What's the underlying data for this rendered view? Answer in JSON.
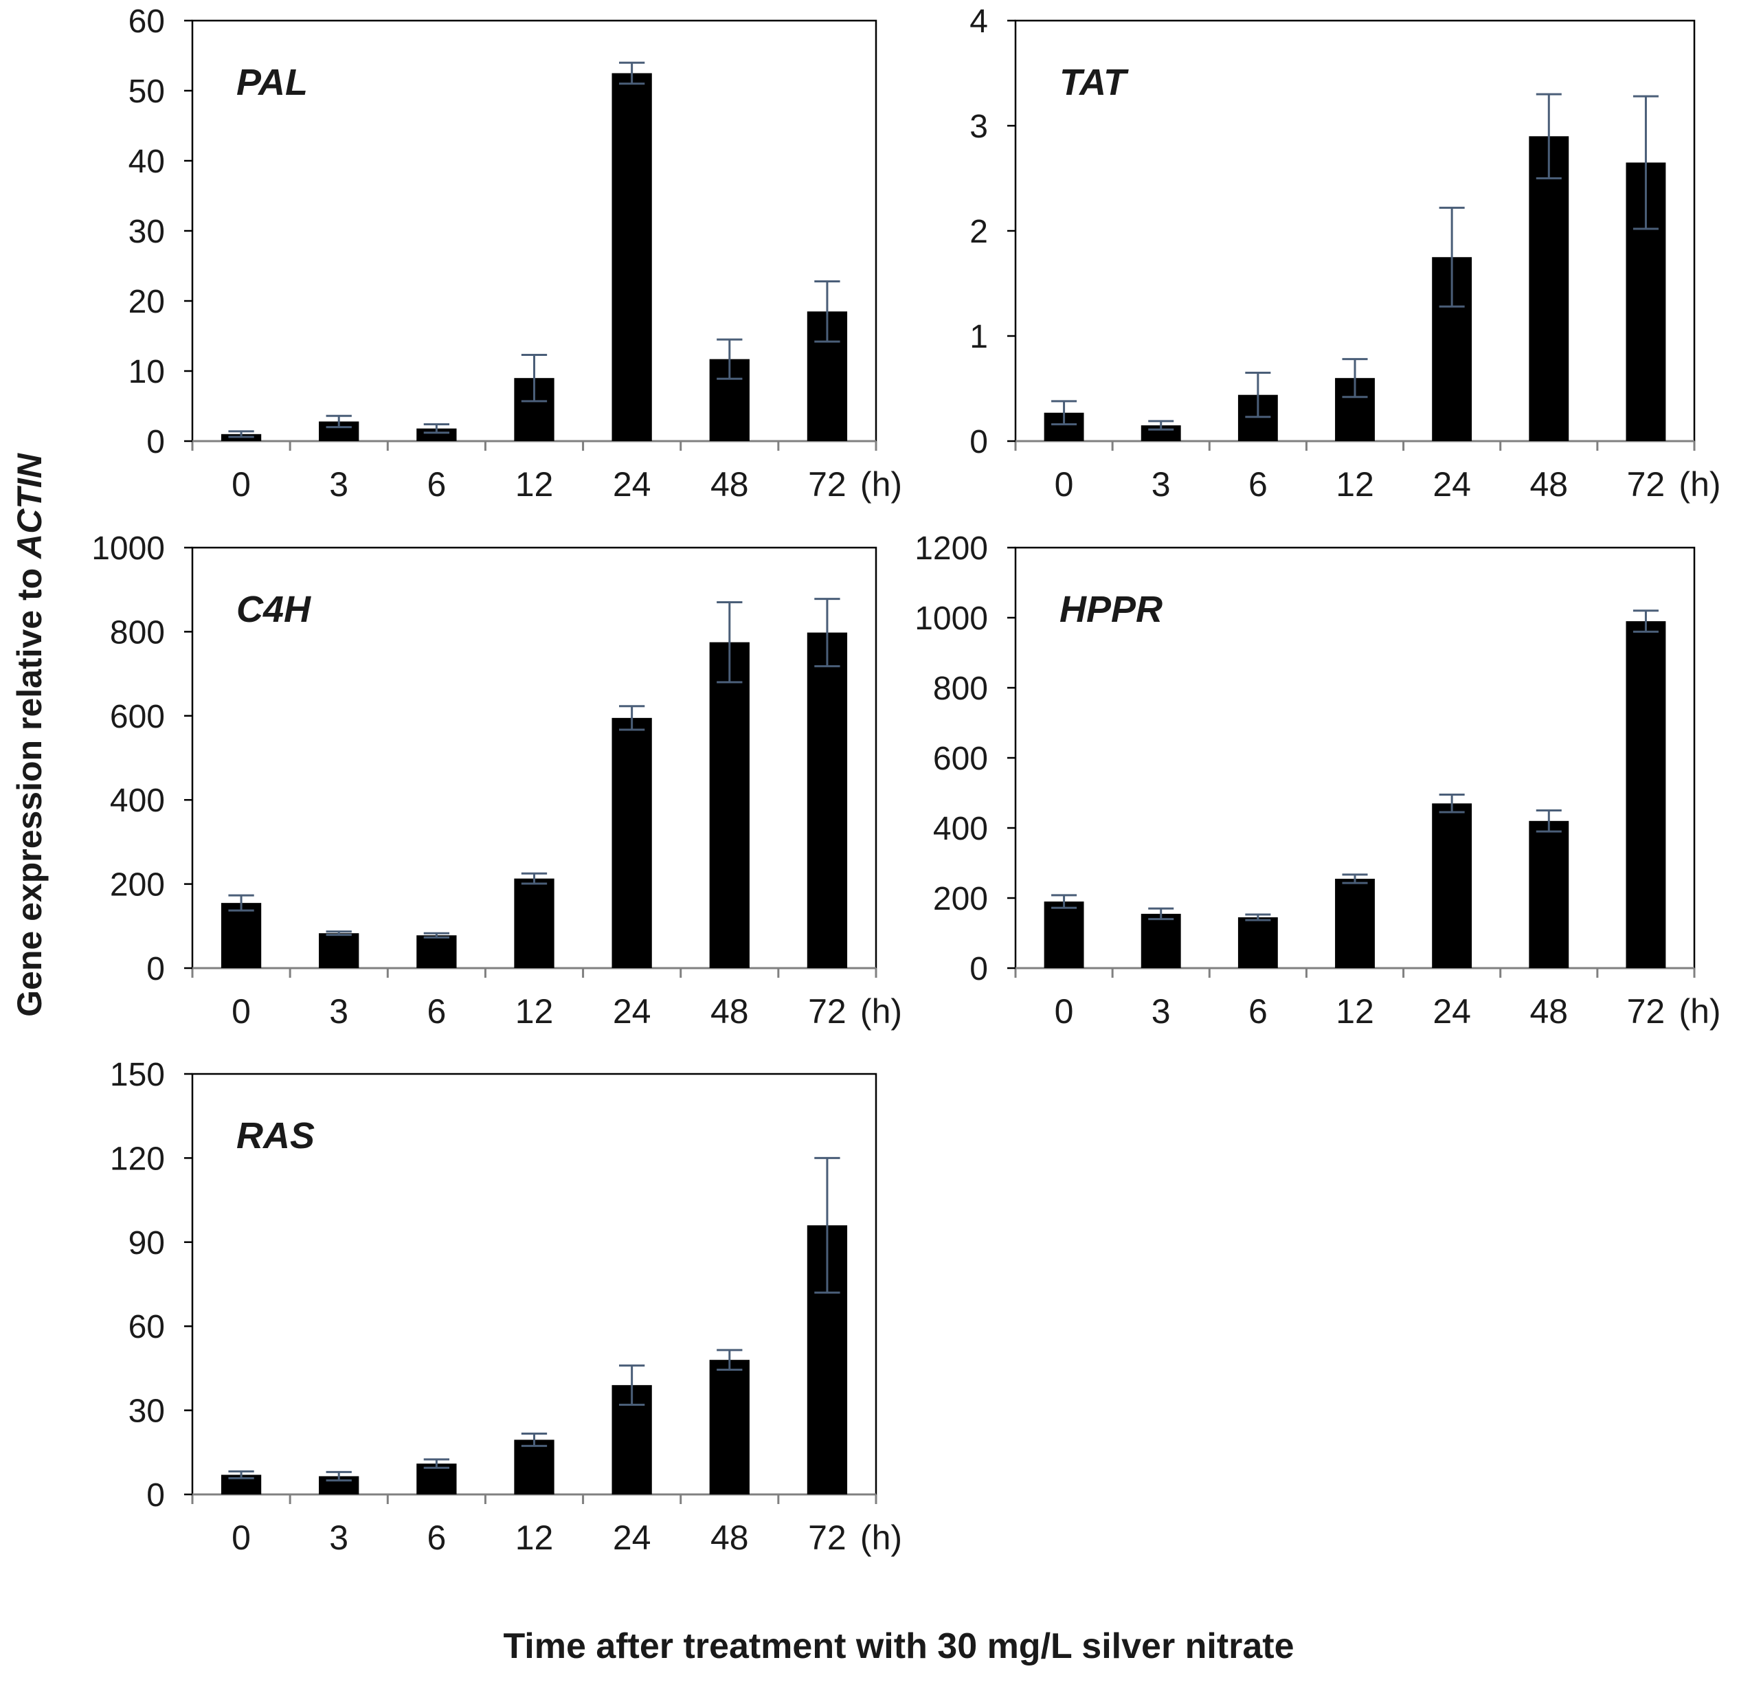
{
  "figure": {
    "ylabel_prefix": "Gene expression relative to",
    "ylabel_gene": "ACTIN",
    "xlabel": "Time after treatment with 30 mg/L silver nitrate",
    "unit_label": "(h)",
    "bar_color": "#000000",
    "error_color": "#4a5e78",
    "axis_color": "#808080"
  },
  "chart_data": [
    {
      "type": "bar",
      "title": "PAL",
      "categories": [
        "0",
        "3",
        "6",
        "12",
        "24",
        "48",
        "72"
      ],
      "values": [
        1,
        2.8,
        1.8,
        9,
        52.5,
        11.7,
        18.5
      ],
      "errors": [
        0.4,
        0.8,
        0.6,
        3.3,
        1.5,
        2.8,
        4.3
      ],
      "ylim": [
        0,
        60
      ],
      "yticks": [
        0,
        10,
        20,
        30,
        40,
        50,
        60
      ]
    },
    {
      "type": "bar",
      "title": "TAT",
      "categories": [
        "0",
        "3",
        "6",
        "12",
        "24",
        "48",
        "72"
      ],
      "values": [
        0.27,
        0.15,
        0.44,
        0.6,
        1.75,
        2.9,
        2.65
      ],
      "errors": [
        0.11,
        0.04,
        0.21,
        0.18,
        0.47,
        0.4,
        0.63
      ],
      "ylim": [
        0,
        4
      ],
      "yticks": [
        0,
        1,
        2,
        3,
        4
      ]
    },
    {
      "type": "bar",
      "title": "C4H",
      "categories": [
        "0",
        "3",
        "6",
        "12",
        "24",
        "48",
        "72"
      ],
      "values": [
        155,
        83,
        78,
        213,
        595,
        775,
        798
      ],
      "errors": [
        18,
        4,
        5,
        12,
        28,
        95,
        80
      ],
      "ylim": [
        0,
        1000
      ],
      "yticks": [
        0,
        200,
        400,
        600,
        800,
        1000
      ]
    },
    {
      "type": "bar",
      "title": "HPPR",
      "categories": [
        "0",
        "3",
        "6",
        "12",
        "24",
        "48",
        "72"
      ],
      "values": [
        190,
        155,
        145,
        255,
        470,
        420,
        990
      ],
      "errors": [
        18,
        15,
        8,
        12,
        25,
        30,
        30
      ],
      "ylim": [
        0,
        1200
      ],
      "yticks": [
        0,
        200,
        400,
        600,
        800,
        1000,
        1200
      ]
    },
    {
      "type": "bar",
      "title": "RAS",
      "categories": [
        "0",
        "3",
        "6",
        "12",
        "24",
        "48",
        "72"
      ],
      "values": [
        7,
        6.5,
        11,
        19.5,
        39,
        48,
        96
      ],
      "errors": [
        1.2,
        1.5,
        1.5,
        2.2,
        7,
        3.5,
        24
      ],
      "ylim": [
        0,
        150
      ],
      "yticks": [
        0,
        30,
        60,
        90,
        120,
        150
      ]
    }
  ]
}
